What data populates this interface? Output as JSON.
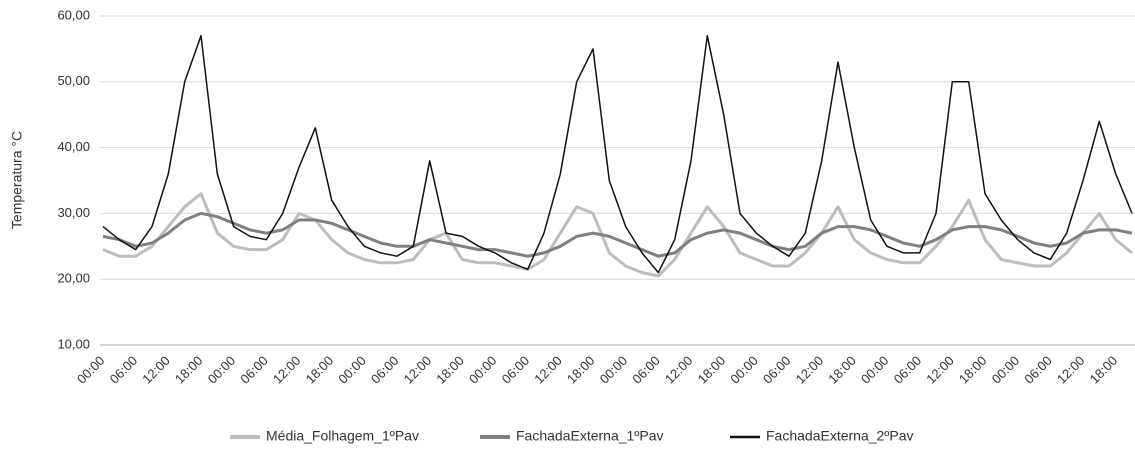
{
  "chart_data": {
    "type": "line",
    "y_label": "Temperatura °C",
    "categories": [
      "00:00",
      null,
      "06:00",
      null,
      "12:00",
      null,
      "18:00",
      null,
      "00:00",
      null,
      "06:00",
      null,
      "12:00",
      null,
      "18:00",
      null,
      "00:00",
      null,
      "06:00",
      null,
      "12:00",
      null,
      "18:00",
      null,
      "00:00",
      null,
      "06:00",
      null,
      "12:00",
      null,
      "18:00",
      null,
      "00:00",
      null,
      "06:00",
      null,
      "12:00",
      null,
      "18:00",
      null,
      "00:00",
      null,
      "06:00",
      null,
      "12:00",
      null,
      "18:00",
      null,
      "00:00",
      null,
      "06:00",
      null,
      "12:00",
      null,
      "18:00",
      null,
      "00:00",
      null,
      "06:00",
      null,
      "12:00",
      null,
      "18:00",
      null
    ],
    "series": [
      {
        "name": "Média_Folhagem_1ºPav",
        "color": "#bdbdbd",
        "width": 3,
        "values": [
          24.5,
          23.5,
          23.5,
          25,
          28,
          31,
          33,
          27,
          25,
          24.5,
          24.5,
          26,
          30,
          29,
          26,
          24,
          23,
          22.5,
          22.5,
          23,
          26,
          27,
          23,
          22.5,
          22.5,
          22,
          21.5,
          23,
          27,
          31,
          30,
          24,
          22,
          21,
          20.5,
          23,
          27,
          31,
          28,
          24,
          23,
          22,
          22,
          24,
          27,
          31,
          26,
          24,
          23,
          22.5,
          22.5,
          25,
          28,
          32,
          26,
          23,
          22.5,
          22,
          22,
          24,
          27,
          30,
          26,
          24
        ]
      },
      {
        "name": "FachadaExterna_1ºPav",
        "color": "#808080",
        "width": 3,
        "values": [
          26.5,
          26,
          25,
          25.5,
          27,
          29,
          30,
          29.5,
          28.5,
          27.5,
          27,
          27.5,
          29,
          29,
          28.5,
          27.5,
          26.5,
          25.5,
          25,
          25,
          26,
          25.5,
          25,
          24.5,
          24.5,
          24,
          23.5,
          24,
          25,
          26.5,
          27,
          26.5,
          25.5,
          24.5,
          23.5,
          24,
          26,
          27,
          27.5,
          27,
          26,
          25,
          24.5,
          25,
          27,
          28,
          28,
          27.5,
          26.5,
          25.5,
          25,
          26,
          27.5,
          28,
          28,
          27.5,
          26.5,
          25.5,
          25,
          25.5,
          27,
          27.5,
          27.5,
          27
        ]
      },
      {
        "name": "FachadaExterna_2ºPav",
        "color": "#111111",
        "width": 1.5,
        "values": [
          28,
          26,
          24.5,
          28,
          36,
          50,
          57,
          36,
          28,
          26.5,
          26,
          30,
          37,
          43,
          32,
          28,
          25,
          24,
          23.5,
          25,
          38,
          27,
          26.5,
          25,
          24,
          22.5,
          21.5,
          27,
          36,
          50,
          55,
          35,
          28,
          24,
          21,
          26,
          38,
          57,
          45,
          30,
          27,
          25,
          23.5,
          27,
          38,
          53,
          40,
          29,
          25,
          24,
          24,
          30,
          50,
          50,
          33,
          29,
          26,
          24,
          23,
          27,
          35,
          44,
          36,
          30
        ]
      }
    ],
    "ylim": [
      10,
      60
    ],
    "yticks": [
      {
        "value": 10,
        "label": "10,00"
      },
      {
        "value": 20,
        "label": "20,00"
      },
      {
        "value": 30,
        "label": "30,00"
      },
      {
        "value": 40,
        "label": "40,00"
      },
      {
        "value": 50,
        "label": "50,00"
      },
      {
        "value": 60,
        "label": "60,00"
      }
    ],
    "grid": true
  }
}
